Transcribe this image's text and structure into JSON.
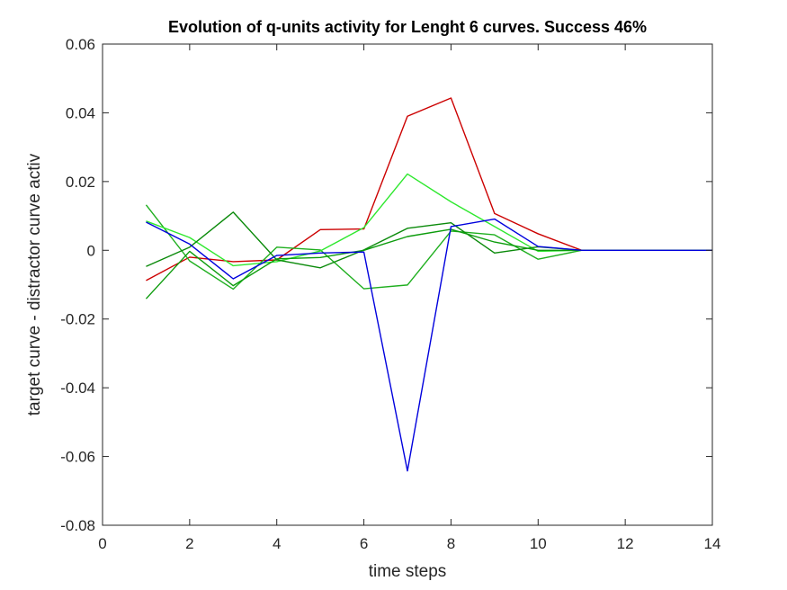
{
  "chart_data": {
    "type": "line",
    "title": "Evolution of q-units activity for Lenght 6 curves. Success 46%",
    "xlabel": "time steps",
    "ylabel": "target curve - distractor curve activ",
    "xlim": [
      0,
      14
    ],
    "ylim": [
      -0.08,
      0.06
    ],
    "xticks": [
      0,
      2,
      4,
      6,
      8,
      10,
      12,
      14
    ],
    "xtick_labels": [
      "0",
      "2",
      "4",
      "6",
      "8",
      "10",
      "12",
      "14"
    ],
    "yticks": [
      0.06,
      0.04,
      0.02,
      0,
      -0.02,
      -0.04,
      -0.06,
      -0.08
    ],
    "ytick_labels": [
      "0.06",
      "0.04",
      "0.02",
      "0",
      "-0.02",
      "-0.04",
      "-0.06",
      "-0.08"
    ],
    "grid": false,
    "x": [
      1,
      2,
      3,
      4,
      5,
      6,
      7,
      8,
      9,
      10,
      11,
      12,
      13,
      14
    ],
    "series": [
      {
        "color": "#cc0000",
        "values": [
          -0.0088,
          -0.002,
          -0.0033,
          -0.0028,
          0.006,
          0.0062,
          0.039,
          0.0443,
          0.0107,
          0.0048,
          0,
          0,
          0,
          0
        ]
      },
      {
        "color": "#1faf1f",
        "values": [
          0.0132,
          -0.0031,
          -0.0113,
          0.0009,
          0.0001,
          -0.0112,
          -0.0101,
          0.0056,
          0.0045,
          -0.0026,
          0,
          0,
          0,
          0
        ]
      },
      {
        "color": "#2ee82e",
        "values": [
          0.0085,
          0.0037,
          -0.0045,
          -0.0033,
          -0.0002,
          0.0066,
          0.0222,
          0.0141,
          0.0069,
          -0.0003,
          0,
          0,
          0,
          0
        ]
      },
      {
        "color": "#0a8a0a",
        "values": [
          -0.0047,
          0.0009,
          0.0111,
          -0.0028,
          -0.0051,
          0.0001,
          0.0064,
          0.008,
          -0.0008,
          0.001,
          0,
          0,
          0,
          0
        ]
      },
      {
        "color": "#0c9c0c",
        "values": [
          -0.0141,
          -0.0003,
          -0.0103,
          -0.0025,
          -0.0021,
          0.0,
          0.004,
          0.0061,
          0.0024,
          0.0,
          0,
          0,
          0,
          0
        ]
      },
      {
        "color": "#0000dd",
        "values": [
          0.0082,
          0.0018,
          -0.0083,
          -0.0015,
          -0.0008,
          -0.0005,
          -0.0642,
          0.0069,
          0.0091,
          0.0011,
          0,
          0,
          0,
          0
        ]
      }
    ]
  }
}
